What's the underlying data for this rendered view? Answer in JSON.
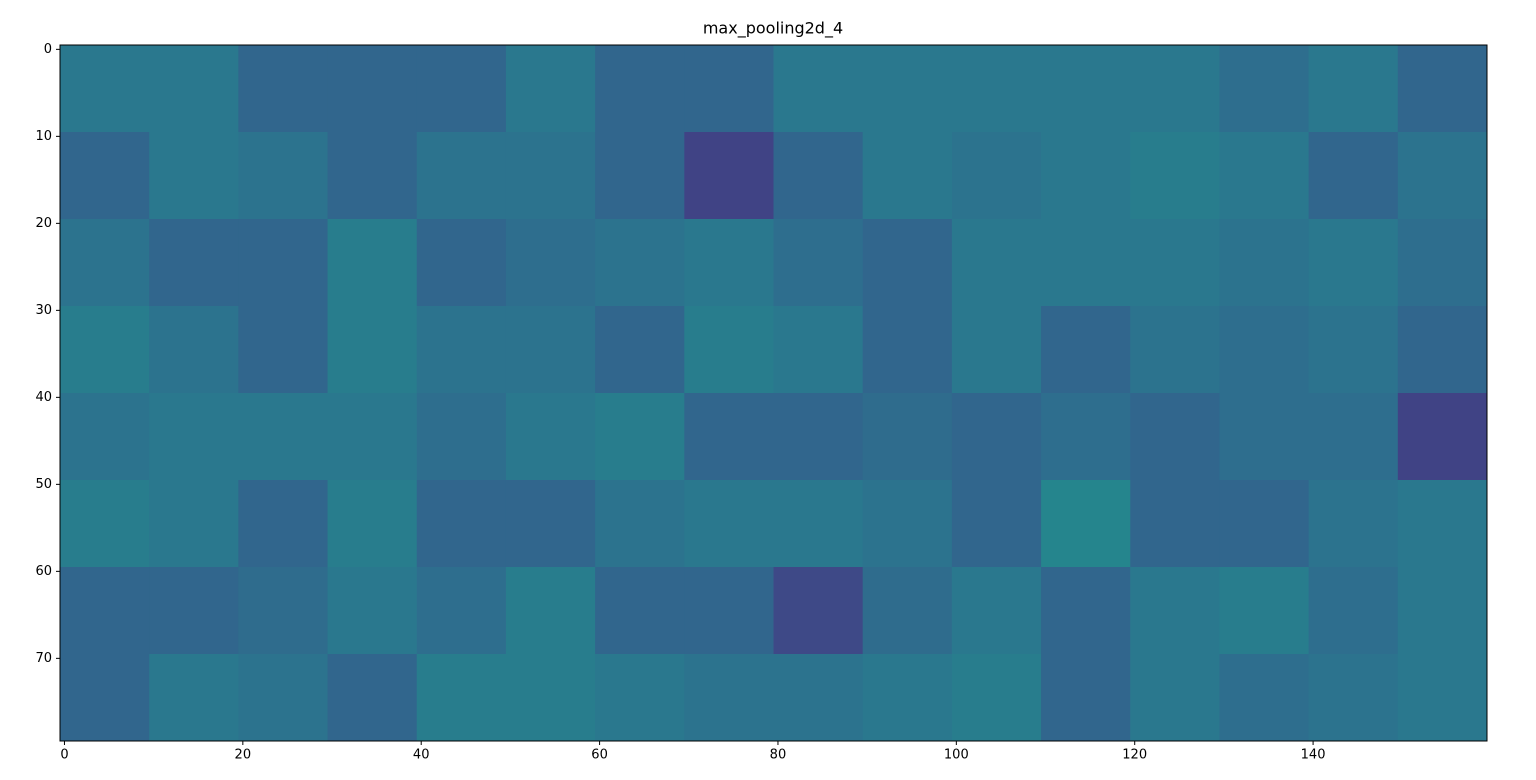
{
  "chart_data": {
    "type": "heatmap",
    "title": "max_pooling2d_4",
    "xlim": [
      -0.5,
      159.5
    ],
    "ylim": [
      79.5,
      -0.5
    ],
    "xticks": [
      0,
      20,
      40,
      60,
      80,
      100,
      120,
      140
    ],
    "yticks": [
      0,
      10,
      20,
      30,
      40,
      50,
      60,
      70
    ],
    "colormap": "viridis",
    "clim": [
      0,
      1
    ],
    "cell": 10,
    "z": [
      [
        0.4,
        0.4,
        0.33,
        0.33,
        0.33,
        0.4,
        0.33,
        0.33,
        0.4,
        0.4,
        0.4,
        0.4,
        0.4,
        0.36,
        0.4,
        0.33
      ],
      [
        0.33,
        0.4,
        0.38,
        0.33,
        0.38,
        0.38,
        0.33,
        0.2,
        0.33,
        0.4,
        0.38,
        0.4,
        0.42,
        0.4,
        0.33,
        0.38
      ],
      [
        0.38,
        0.33,
        0.33,
        0.42,
        0.33,
        0.36,
        0.38,
        0.4,
        0.36,
        0.33,
        0.4,
        0.4,
        0.4,
        0.38,
        0.4,
        0.36
      ],
      [
        0.42,
        0.38,
        0.33,
        0.42,
        0.38,
        0.38,
        0.33,
        0.42,
        0.4,
        0.33,
        0.4,
        0.33,
        0.38,
        0.36,
        0.38,
        0.33
      ],
      [
        0.38,
        0.4,
        0.4,
        0.4,
        0.36,
        0.4,
        0.42,
        0.33,
        0.33,
        0.35,
        0.33,
        0.36,
        0.33,
        0.36,
        0.36,
        0.2
      ],
      [
        0.42,
        0.4,
        0.33,
        0.42,
        0.33,
        0.33,
        0.38,
        0.4,
        0.4,
        0.38,
        0.33,
        0.45,
        0.33,
        0.33,
        0.38,
        0.4
      ],
      [
        0.33,
        0.33,
        0.35,
        0.4,
        0.36,
        0.42,
        0.33,
        0.33,
        0.22,
        0.35,
        0.4,
        0.33,
        0.4,
        0.42,
        0.36,
        0.4
      ],
      [
        0.33,
        0.4,
        0.38,
        0.33,
        0.42,
        0.42,
        0.4,
        0.38,
        0.38,
        0.4,
        0.42,
        0.33,
        0.4,
        0.36,
        0.38,
        0.4
      ]
    ]
  }
}
